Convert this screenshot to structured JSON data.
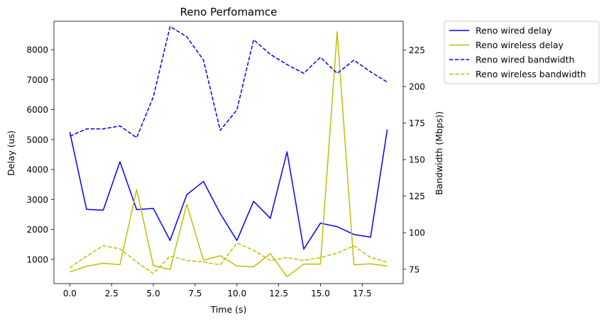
{
  "chart_data": {
    "type": "line",
    "title": "Reno Perfomamce",
    "xlabel": "Time (s)",
    "ylabel_left": "Delay (us)",
    "ylabel_right": "Bandwidth (Mbps))",
    "x": [
      0,
      1,
      2,
      3,
      4,
      5,
      6,
      7,
      8,
      9,
      10,
      11,
      12,
      13,
      14,
      15,
      16,
      17,
      18,
      19
    ],
    "xlim": [
      -0.95,
      19.95
    ],
    "ylim_left": [
      190,
      8950
    ],
    "ylim_right": [
      65.2,
      244.6
    ],
    "x_ticks": [
      0.0,
      2.5,
      5.0,
      7.5,
      10.0,
      12.5,
      15.0,
      17.5
    ],
    "x_tick_labels": [
      "0.0",
      "2.5",
      "5.0",
      "7.5",
      "10.0",
      "12.5",
      "15.0",
      "17.5"
    ],
    "y_left_ticks": [
      1000,
      2000,
      3000,
      4000,
      5000,
      6000,
      7000,
      8000
    ],
    "y_left_tick_labels": [
      "1000",
      "2000",
      "3000",
      "4000",
      "5000",
      "6000",
      "7000",
      "8000"
    ],
    "y_right_ticks": [
      75,
      100,
      125,
      150,
      175,
      200,
      225
    ],
    "y_right_tick_labels": [
      "75",
      "100",
      "125",
      "150",
      "175",
      "200",
      "225"
    ],
    "grid": false,
    "legend_placement": "outside-top-right",
    "series": [
      {
        "name": "Reno wired delay",
        "axis": "left",
        "color": "#0000ff",
        "style": "solid",
        "values": [
          5250,
          2670,
          2640,
          4260,
          2660,
          2700,
          1630,
          3160,
          3600,
          2530,
          1630,
          2940,
          2370,
          4590,
          1340,
          2210,
          2090,
          1830,
          1740,
          5340
        ]
      },
      {
        "name": "Reno wireless delay",
        "axis": "left",
        "color": "#bfbf00",
        "style": "solid",
        "values": [
          580,
          770,
          870,
          820,
          3330,
          790,
          660,
          2840,
          970,
          1120,
          780,
          750,
          1190,
          420,
          840,
          840,
          8600,
          820,
          850,
          780
        ]
      },
      {
        "name": "Reno wired bandwidth",
        "axis": "right",
        "color": "#0000ff",
        "style": "dashed",
        "values": [
          166,
          171,
          171,
          173,
          165,
          193,
          241,
          234,
          218,
          170,
          184,
          232,
          222,
          215,
          209,
          220,
          209,
          218,
          210,
          203
        ]
      },
      {
        "name": "Reno wireless bandwidth",
        "axis": "right",
        "color": "#bfbf00",
        "style": "dashed",
        "values": [
          76,
          84,
          91,
          89,
          80,
          72,
          84,
          81,
          80,
          78,
          93,
          88,
          81,
          83,
          81,
          83,
          86,
          91,
          83,
          80
        ]
      }
    ]
  }
}
